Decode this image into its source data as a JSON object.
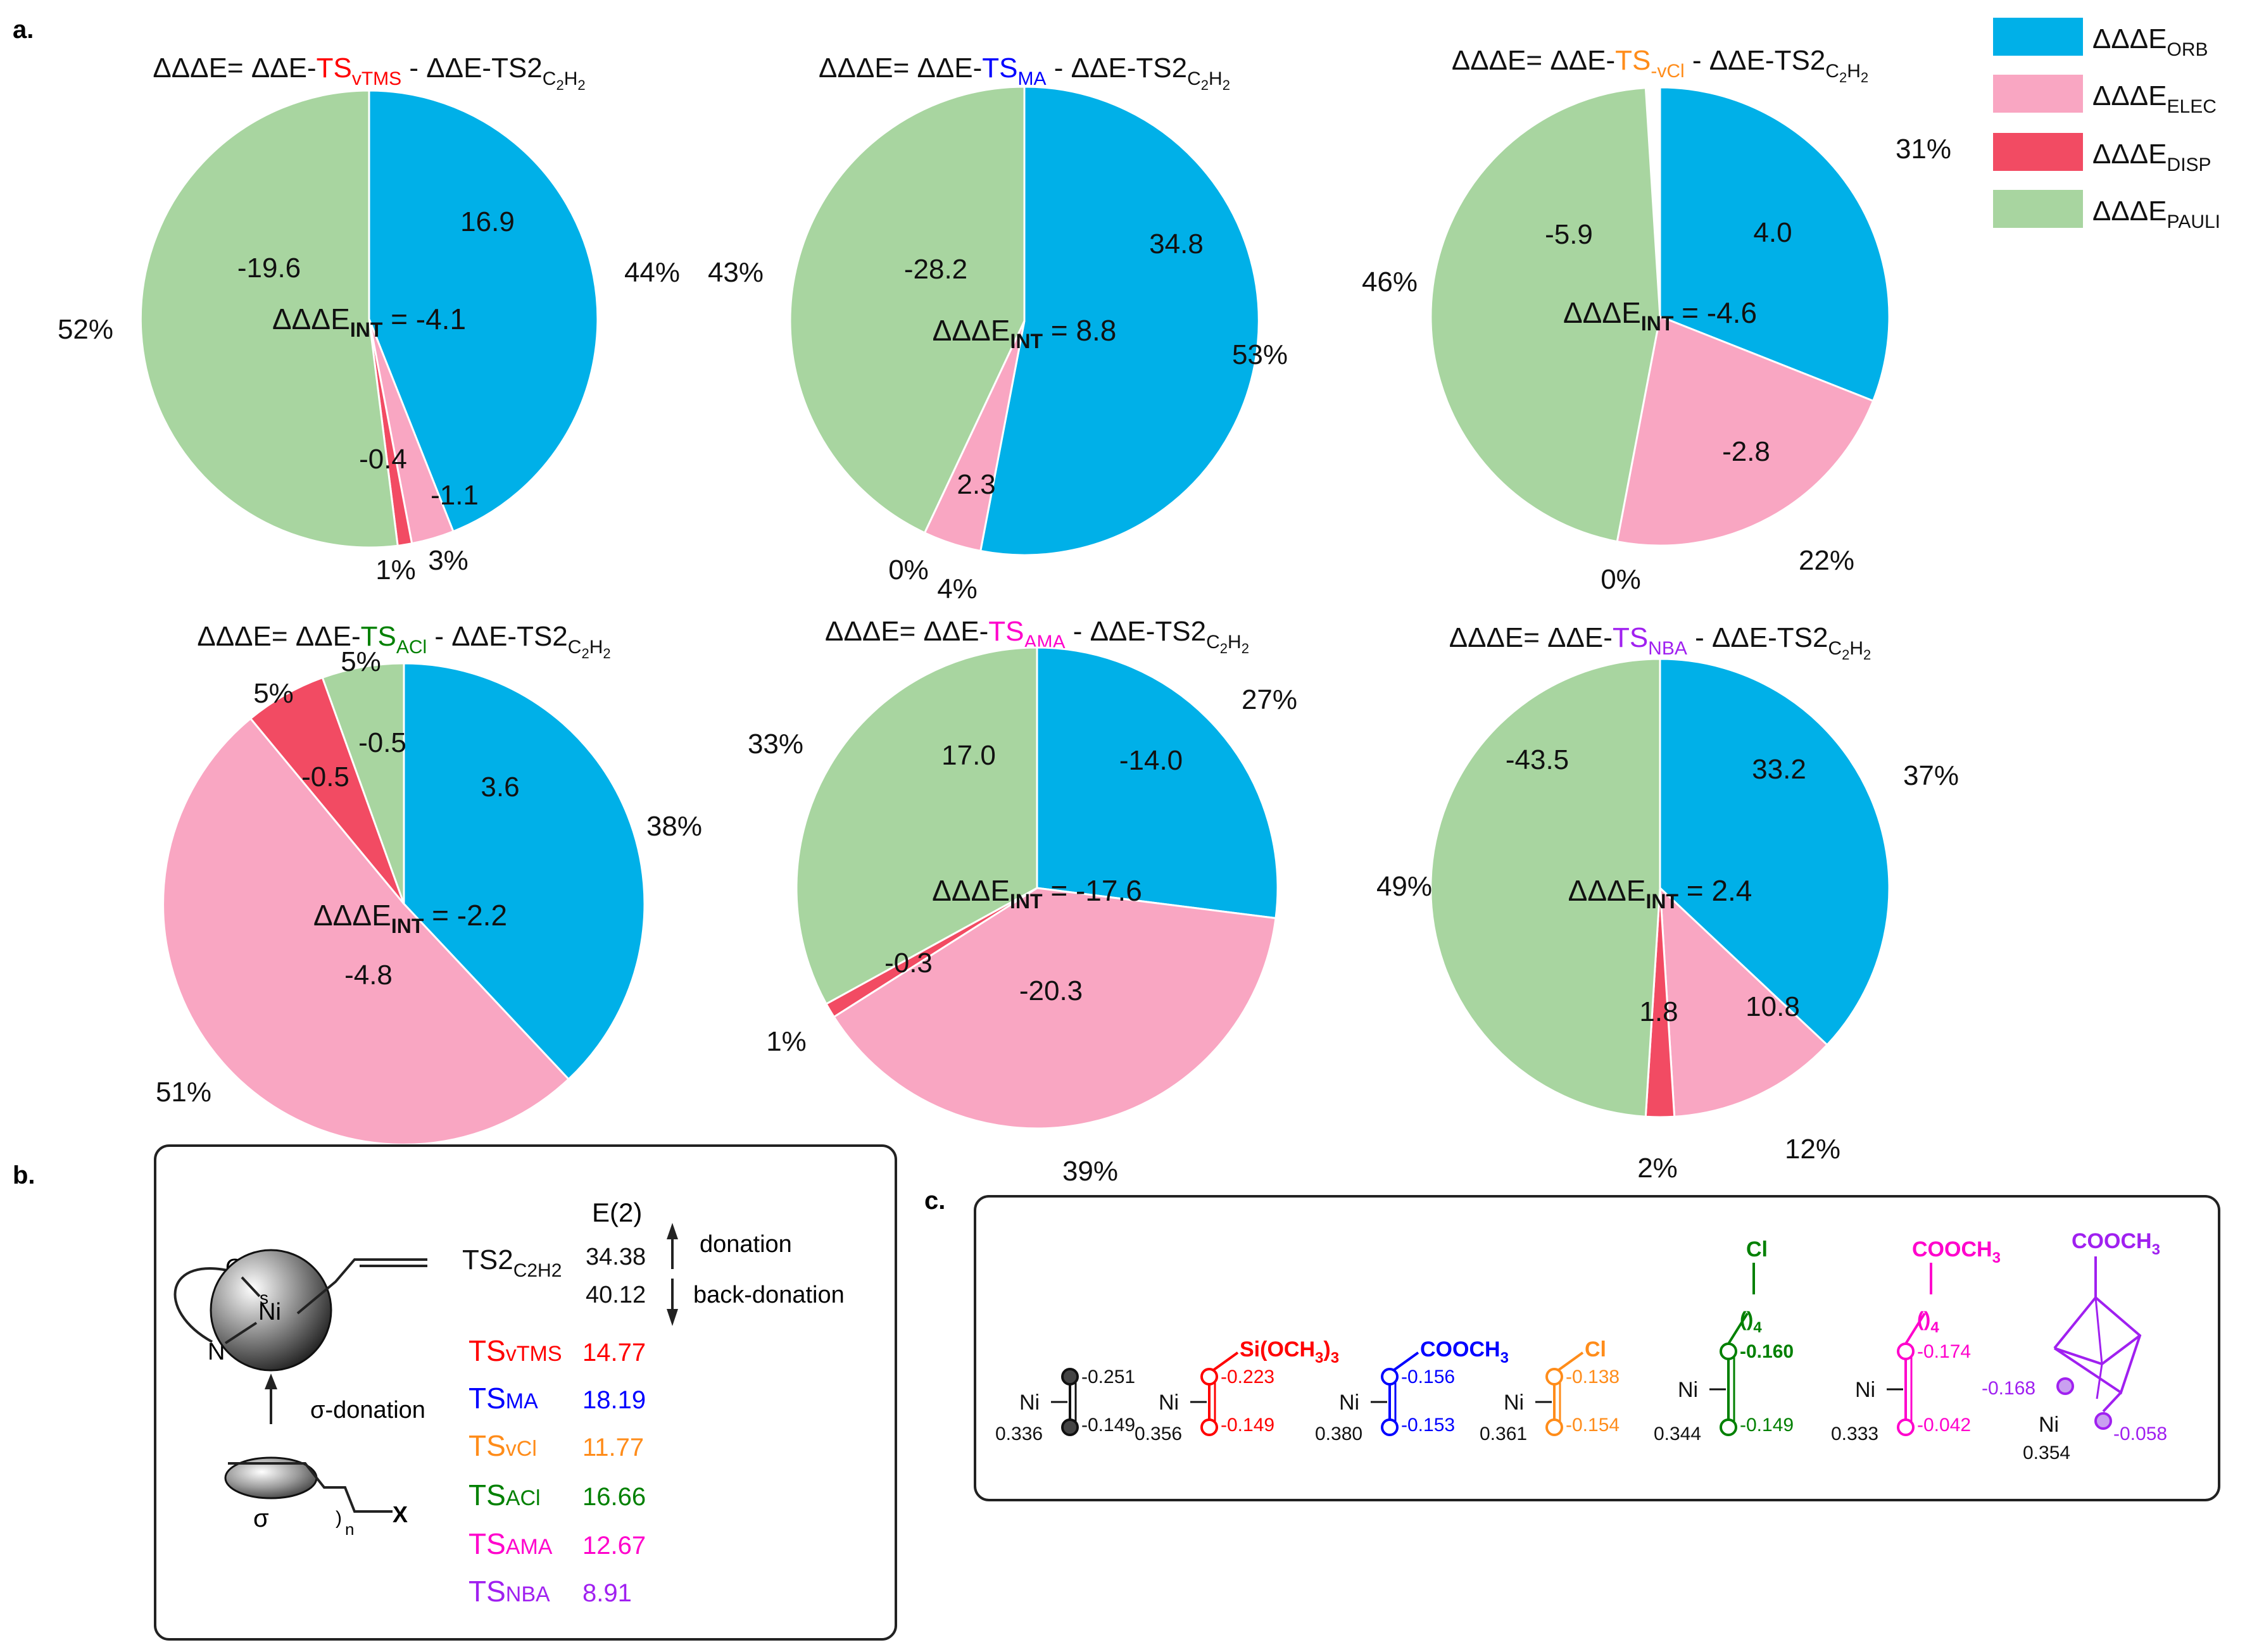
{
  "panel_labels": {
    "a": "a.",
    "b": "b.",
    "c": "c."
  },
  "colors": {
    "orb": "#00B0E8",
    "elec": "#F9A6C2",
    "disp": "#F24B63",
    "pauli": "#A8D5A0",
    "red": "#FF0000",
    "blue": "#0000FF",
    "orange": "#FF8C1A",
    "green": "#008000",
    "magenta": "#FF00CC",
    "purple": "#A020F0",
    "black": "#111111"
  },
  "legend": [
    {
      "key": "orb",
      "base": "ΔΔΔE",
      "sub": "ORB"
    },
    {
      "key": "elec",
      "base": "ΔΔΔE",
      "sub": "ELEC"
    },
    {
      "key": "disp",
      "base": "ΔΔΔE",
      "sub": "DISP"
    },
    {
      "key": "pauli",
      "base": "ΔΔΔE",
      "sub": "PAULI"
    }
  ],
  "title_parts": {
    "prefix": "ΔΔΔE= ΔΔE-",
    "ts": "TS",
    "mid": " - ΔΔE-TS2",
    "sub_c": "C",
    "sub_2a": "2",
    "sub_h": "H",
    "sub_2b": "2"
  },
  "int_label": {
    "base": "ΔΔΔE",
    "sub": "INT"
  },
  "chart_data": [
    {
      "type": "pie",
      "title_sub": "vTMS",
      "title_color": "red",
      "int_value": "= -4.1",
      "categories": [
        "ORB",
        "ELEC",
        "DISP",
        "PAULI"
      ],
      "values": [
        16.9,
        -1.1,
        -0.4,
        -19.6
      ],
      "labels": [
        "16.9",
        "-1.1",
        "-0.4",
        "-19.6"
      ],
      "percent_labels": [
        "44%",
        "3%",
        "1%",
        "52%"
      ],
      "fractions": [
        0.44,
        0.03,
        0.01,
        0.52
      ]
    },
    {
      "type": "pie",
      "title_sub": "MA",
      "title_color": "blue",
      "int_value": "= 8.8",
      "categories": [
        "ORB",
        "ELEC",
        "DISP",
        "PAULI"
      ],
      "values": [
        34.8,
        2.3,
        0.0,
        -28.2
      ],
      "labels": [
        "34.8",
        "2.3",
        "",
        "-28.2"
      ],
      "percent_labels": [
        "53%",
        "4%",
        "0%",
        "43%"
      ],
      "fractions": [
        0.53,
        0.04,
        0.0,
        0.43
      ]
    },
    {
      "type": "pie",
      "title_sub": "vCl",
      "title_color": "orange",
      "title_dash": "-",
      "int_value": "= -4.6",
      "categories": [
        "ORB",
        "ELEC",
        "DISP",
        "PAULI"
      ],
      "values": [
        4.0,
        -2.8,
        0.0,
        -5.9
      ],
      "labels": [
        "4.0",
        "-2.8",
        "",
        "-5.9"
      ],
      "percent_labels": [
        "31%",
        "22%",
        "0%",
        "46%"
      ],
      "fractions": [
        0.31,
        0.22,
        0.0,
        0.46
      ]
    },
    {
      "type": "pie",
      "title_sub": "ACl",
      "title_color": "green",
      "int_value": "= -2.2",
      "categories": [
        "ORB",
        "ELEC",
        "DISP",
        "PAULI"
      ],
      "values": [
        3.6,
        -4.8,
        -0.5,
        -0.5
      ],
      "labels": [
        "3.6",
        "-4.8",
        "-0.5",
        "-0.5"
      ],
      "percent_labels": [
        "38%",
        "51%",
        "5%",
        "5%"
      ],
      "fractions": [
        0.38,
        0.51,
        0.055,
        0.055
      ]
    },
    {
      "type": "pie",
      "title_sub": "AMA",
      "title_color": "magenta",
      "int_value": "= -17.6",
      "categories": [
        "ORB",
        "ELEC",
        "DISP",
        "PAULI"
      ],
      "values": [
        -14.0,
        -20.3,
        -0.3,
        17.0
      ],
      "labels": [
        "-14.0",
        "-20.3",
        "-0.3",
        "17.0"
      ],
      "percent_labels": [
        "27%",
        "39%",
        "1%",
        "33%"
      ],
      "fractions": [
        0.27,
        0.39,
        0.01,
        0.33
      ]
    },
    {
      "type": "pie",
      "title_sub": "NBA",
      "title_color": "purple",
      "int_value": "= 2.4",
      "categories": [
        "ORB",
        "ELEC",
        "DISP",
        "PAULI"
      ],
      "values": [
        33.2,
        10.8,
        1.8,
        -43.5
      ],
      "labels": [
        "33.2",
        "10.8",
        "1.8",
        "-43.5"
      ],
      "percent_labels": [
        "37%",
        "12%",
        "2%",
        "49%"
      ],
      "fractions": [
        0.37,
        0.12,
        0.02,
        0.49
      ]
    }
  ],
  "panel_b": {
    "e2_header": "E(2)",
    "donation": "donation",
    "back_donation": "back-donation",
    "s_label": "s",
    "o_label": "O",
    "ni_label": "Ni",
    "n_label": "N",
    "sigma_donation": "σ-donation",
    "sigma": "σ",
    "n_sub": "n",
    "x_label": "X",
    "ref": {
      "label": "TS2",
      "sub": "C2H2",
      "donation_value": "34.38",
      "back_value": "40.12"
    },
    "rows": [
      {
        "name": "TS",
        "sub": "vTMS",
        "value": "14.77",
        "color": "red"
      },
      {
        "name": "TS",
        "sub": "MA",
        "value": "18.19",
        "color": "blue"
      },
      {
        "name": "TS",
        "sub": "vCl",
        "value": "11.77",
        "color": "orange"
      },
      {
        "name": "TS",
        "sub": "ACl",
        "value": "16.66",
        "color": "green"
      },
      {
        "name": "TS",
        "sub": "AMA",
        "value": "12.67",
        "color": "magenta"
      },
      {
        "name": "TS",
        "sub": "NBA",
        "value": "8.91",
        "color": "purple"
      }
    ]
  },
  "panel_c": {
    "ni": "Ni",
    "items": [
      {
        "color": "black",
        "substituent": "",
        "ni_charge": "0.336",
        "c1": "-0.251",
        "c2": "-0.149"
      },
      {
        "color": "red",
        "substituent": "Si(OCH3)3",
        "ni_charge": "0.356",
        "c1": "-0.223",
        "c2": "-0.149"
      },
      {
        "color": "blue",
        "substituent": "COOCH3",
        "ni_charge": "0.380",
        "c1": "-0.156",
        "c2": "-0.153"
      },
      {
        "color": "orange",
        "substituent": "Cl",
        "ni_charge": "0.361",
        "c1": "-0.138",
        "c2": "-0.154"
      },
      {
        "color": "green",
        "substituent": "Cl",
        "chain": "()4",
        "ni_charge": "0.344",
        "c1": "-0.160",
        "c2": "-0.149"
      },
      {
        "color": "magenta",
        "substituent": "COOCH3",
        "chain": "()4",
        "ni_charge": "0.333",
        "c1": "-0.174",
        "c2": "-0.042"
      },
      {
        "color": "purple",
        "substituent": "COOCH3",
        "ni_charge": "0.354",
        "c1": "-0.168",
        "c2": "-0.058"
      }
    ]
  }
}
